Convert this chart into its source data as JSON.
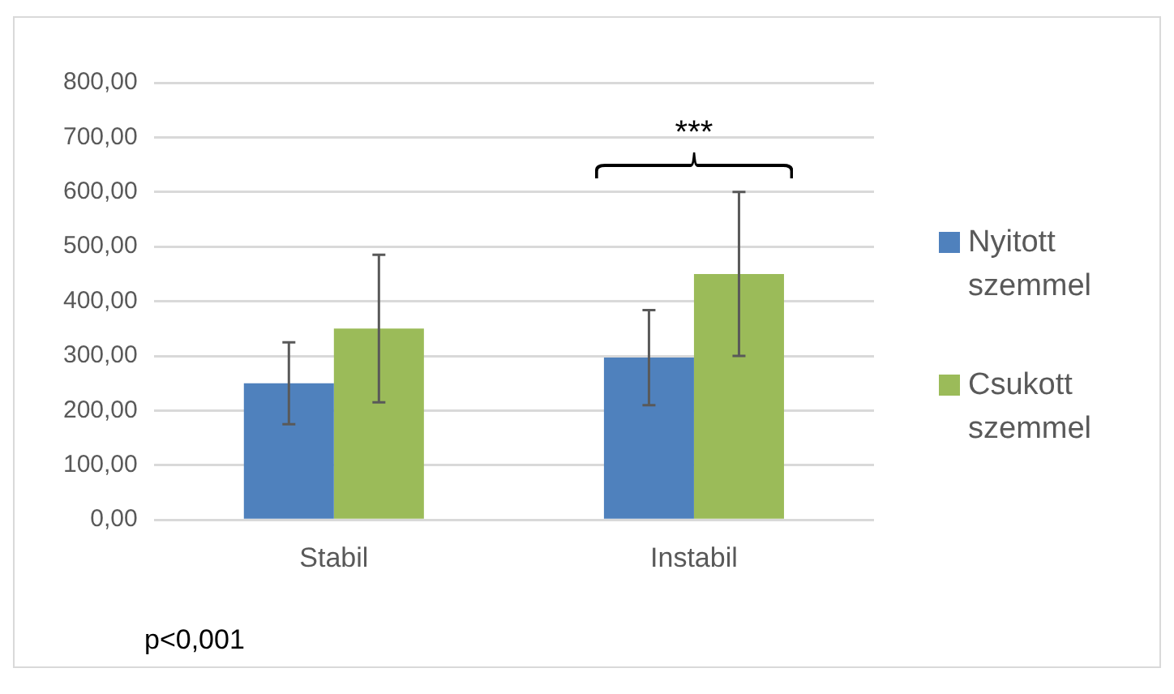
{
  "chart_data": {
    "type": "bar",
    "categories": [
      "Stabil",
      "Instabil"
    ],
    "series": [
      {
        "name": "Nyitott szemmel",
        "color": "#4f81bd",
        "values": [
          250,
          297
        ],
        "errors": [
          75,
          87
        ]
      },
      {
        "name": "Csukott szemmel",
        "color": "#9bbb59",
        "values": [
          350,
          450
        ],
        "errors": [
          135,
          150
        ]
      }
    ],
    "ylim": [
      0,
      800
    ],
    "yticks": [
      {
        "value": 0,
        "label": "0,00"
      },
      {
        "value": 100,
        "label": "100,00"
      },
      {
        "value": 200,
        "label": "200,00"
      },
      {
        "value": 300,
        "label": "300,00"
      },
      {
        "value": 400,
        "label": "400,00"
      },
      {
        "value": 500,
        "label": "500,00"
      },
      {
        "value": 600,
        "label": "600,00"
      },
      {
        "value": 700,
        "label": "700,00"
      },
      {
        "value": 800,
        "label": "800,00"
      }
    ],
    "grid": "y",
    "legend": "right",
    "annotations": [
      "***",
      "p<0,001"
    ]
  }
}
